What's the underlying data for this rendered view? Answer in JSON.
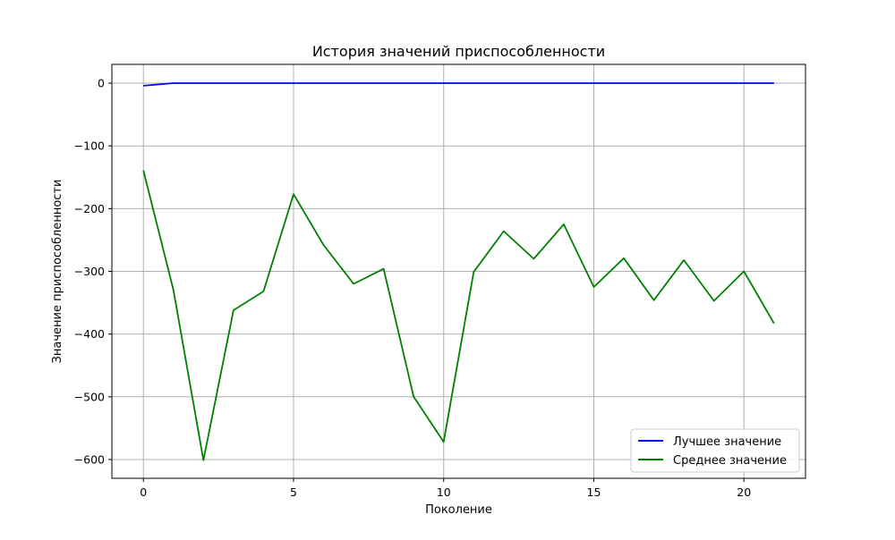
{
  "chart_data": {
    "type": "line",
    "title": "История значений приспособленности",
    "xlabel": "Поколение",
    "ylabel": "Значение приспособленности",
    "xlim": [
      -1.05,
      22.05
    ],
    "ylim": [
      -630,
      30
    ],
    "xticks": [
      0,
      5,
      10,
      15,
      20
    ],
    "yticks": [
      0,
      -100,
      -200,
      -300,
      -400,
      -500,
      -600
    ],
    "xtick_labels": [
      "0",
      "5",
      "10",
      "15",
      "20"
    ],
    "ytick_labels": [
      "0",
      "−100",
      "−200",
      "−300",
      "−400",
      "−500",
      "−600"
    ],
    "grid": true,
    "legend_position": "lower-right",
    "x": [
      0,
      1,
      2,
      3,
      4,
      5,
      6,
      7,
      8,
      9,
      10,
      11,
      12,
      13,
      14,
      15,
      16,
      17,
      18,
      19,
      20,
      21
    ],
    "series": [
      {
        "name": "Лучшее значение",
        "color": "#0000ff",
        "values": [
          -4,
          0,
          0,
          0,
          0,
          0,
          0,
          0,
          0,
          0,
          0,
          0,
          0,
          0,
          0,
          0,
          0,
          0,
          0,
          0,
          0,
          0
        ]
      },
      {
        "name": "Среднее значение",
        "color": "#008000",
        "values": [
          -139,
          -330,
          -601,
          -362,
          -332,
          -177,
          -258,
          -320,
          -296,
          -500,
          -572,
          -301,
          -236,
          -280,
          -225,
          -325,
          -279,
          -346,
          -282,
          -347,
          -300,
          -383
        ]
      }
    ]
  }
}
